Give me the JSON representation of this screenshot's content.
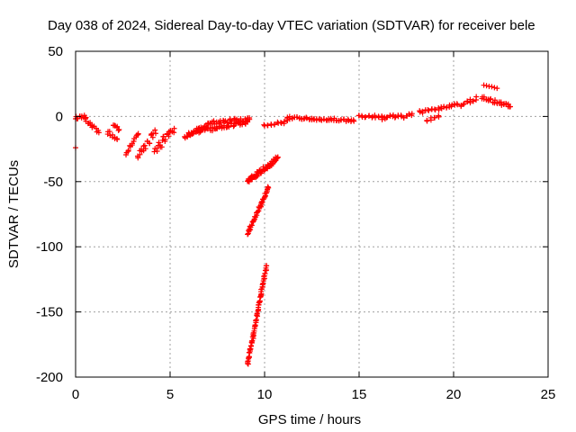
{
  "chart_data": {
    "type": "scatter",
    "title": "Day 038 of 2024, Sidereal Day-to-day VTEC variation (SDTVAR) for receiver bele",
    "xlabel": "GPS time / hours",
    "ylabel": "SDTVAR / TECUs",
    "xlim": [
      0,
      25
    ],
    "ylim": [
      -200,
      50
    ],
    "xticks": [
      0,
      5,
      10,
      15,
      20,
      25
    ],
    "yticks": [
      50,
      0,
      -50,
      -100,
      -150,
      -200
    ],
    "grid": true,
    "marker": "+",
    "marker_color": "#ff0000",
    "segments": [
      {
        "x0": 0.0,
        "x1": 0.55,
        "y0": -1,
        "y1": 0,
        "n": 6,
        "spread": 2
      },
      {
        "x0": 0.55,
        "x1": 1.2,
        "y0": -3,
        "y1": -12,
        "n": 7,
        "spread": 3
      },
      {
        "x0": 1.7,
        "x1": 2.2,
        "y0": -12,
        "y1": -18,
        "n": 5,
        "spread": 4
      },
      {
        "x0": 2.0,
        "x1": 2.3,
        "y0": -6,
        "y1": -10,
        "n": 4,
        "spread": 2
      },
      {
        "x0": 2.7,
        "x1": 3.3,
        "y0": -28,
        "y1": -14,
        "n": 7,
        "spread": 4
      },
      {
        "x0": 3.3,
        "x1": 4.2,
        "y0": -30,
        "y1": -12,
        "n": 10,
        "spread": 6
      },
      {
        "x0": 4.2,
        "x1": 5.2,
        "y0": -24,
        "y1": -12,
        "n": 12,
        "spread": 8
      },
      {
        "x0": 5.8,
        "x1": 7.0,
        "y0": -15,
        "y1": -7,
        "n": 14,
        "spread": 3
      },
      {
        "x0": 6.0,
        "x1": 9.1,
        "y0": -13,
        "y1": -4,
        "n": 26,
        "spread": 3
      },
      {
        "x0": 7.0,
        "x1": 9.2,
        "y0": -5,
        "y1": -2,
        "n": 20,
        "spread": 3
      },
      {
        "x0": 9.1,
        "x1": 10.7,
        "y0": -50,
        "y1": -32,
        "n": 30,
        "spread": 4
      },
      {
        "x0": 9.1,
        "x1": 10.2,
        "y0": -90,
        "y1": -55,
        "n": 22,
        "spread": 2
      },
      {
        "x0": 9.1,
        "x1": 10.1,
        "y0": -190,
        "y1": -115,
        "n": 38,
        "spread": 2
      },
      {
        "x0": 10.0,
        "x1": 11.2,
        "y0": -7,
        "y1": -4,
        "n": 8,
        "spread": 2
      },
      {
        "x0": 11.2,
        "x1": 14.7,
        "y0": -1,
        "y1": -3,
        "n": 28,
        "spread": 2
      },
      {
        "x0": 15.0,
        "x1": 16.2,
        "y0": 0,
        "y1": 0,
        "n": 8,
        "spread": 2
      },
      {
        "x0": 16.2,
        "x1": 17.8,
        "y0": -1,
        "y1": 1,
        "n": 12,
        "spread": 3
      },
      {
        "x0": 18.2,
        "x1": 19.0,
        "y0": 3,
        "y1": 6,
        "n": 6,
        "spread": 3
      },
      {
        "x0": 18.6,
        "x1": 19.2,
        "y0": -3,
        "y1": 0,
        "n": 4,
        "spread": 2
      },
      {
        "x0": 19.2,
        "x1": 20.2,
        "y0": 6,
        "y1": 9,
        "n": 8,
        "spread": 2
      },
      {
        "x0": 20.4,
        "x1": 21.2,
        "y0": 9,
        "y1": 14,
        "n": 6,
        "spread": 3
      },
      {
        "x0": 21.6,
        "x1": 22.3,
        "y0": 24,
        "y1": 22,
        "n": 6,
        "spread": 1
      },
      {
        "x0": 21.5,
        "x1": 23.0,
        "y0": 14,
        "y1": 8,
        "n": 14,
        "spread": 3
      },
      {
        "x0": 0.0,
        "x1": 0.0,
        "y0": -24,
        "y1": -24,
        "n": 1,
        "spread": 0
      }
    ]
  }
}
